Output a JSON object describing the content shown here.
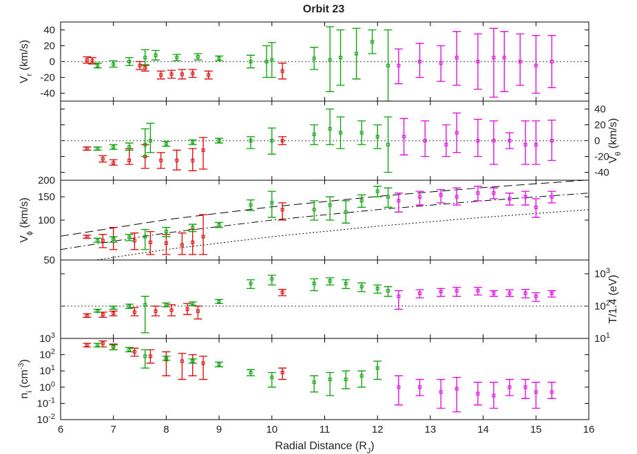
{
  "chart_data": [
    {
      "type": "errorbar",
      "title": "Orbit 23",
      "yaxis": "left",
      "ylabel": [
        {
          "text": "V"
        },
        {
          "text": "r",
          "shift": "sub"
        },
        {
          "text": " (km/s)"
        }
      ],
      "xlim": [
        6,
        16
      ],
      "xticks": [
        6,
        7,
        8,
        9,
        10,
        11,
        12,
        13,
        14,
        15,
        16
      ],
      "ylim": [
        -50,
        50
      ],
      "yticks": [
        -40,
        -20,
        0,
        20,
        40
      ],
      "refline": 0,
      "series": [
        {
          "color": "#dd0000",
          "x": [
            6.5,
            6.6,
            7.5,
            7.6,
            7.9,
            8.1,
            8.3,
            8.5,
            8.8,
            10.2
          ],
          "values": [
            2,
            1,
            -5,
            -8,
            -17,
            -16,
            -16,
            -15,
            -17,
            -12
          ],
          "low": [
            -2,
            -3,
            -10,
            -12,
            -22,
            -21,
            -22,
            -20,
            -22,
            -22
          ],
          "high": [
            6,
            5,
            0,
            -4,
            -12,
            -11,
            -10,
            -10,
            -12,
            -2
          ]
        },
        {
          "color": "#00a000",
          "x": [
            6.7,
            7.0,
            7.3,
            7.6,
            7.8,
            8.2,
            8.6,
            9.0,
            9.6,
            9.9,
            10.0,
            10.8,
            11.1,
            11.3,
            11.6,
            11.9,
            12.2
          ],
          "values": [
            -5,
            -3,
            0,
            5,
            8,
            5,
            6,
            4,
            0,
            0,
            2,
            4,
            2,
            5,
            10,
            25,
            -5
          ],
          "low": [
            -8,
            -7,
            -5,
            -5,
            2,
            1,
            2,
            1,
            -8,
            -20,
            -20,
            -10,
            -38,
            -30,
            -22,
            10,
            -50
          ],
          "high": [
            -2,
            1,
            5,
            15,
            14,
            9,
            10,
            7,
            8,
            20,
            24,
            18,
            44,
            40,
            42,
            40,
            40
          ]
        },
        {
          "color": "#dd00dd",
          "x": [
            12.4,
            12.8,
            13.2,
            13.5,
            13.9,
            14.2,
            14.4,
            14.7,
            15.0,
            15.3
          ],
          "values": [
            -5,
            0,
            -2,
            5,
            0,
            5,
            5,
            0,
            -5,
            0
          ],
          "low": [
            -28,
            -20,
            -25,
            -30,
            -35,
            -45,
            -38,
            -30,
            -40,
            -33
          ],
          "high": [
            16,
            23,
            20,
            38,
            35,
            42,
            38,
            35,
            33,
            33
          ]
        }
      ]
    },
    {
      "type": "errorbar",
      "yaxis": "right",
      "ylabel": [
        {
          "text": "V"
        },
        {
          "text": "θ",
          "shift": "sub"
        },
        {
          "text": " (km/s)"
        }
      ],
      "xlim": [
        6,
        16
      ],
      "xticks": [
        6,
        7,
        8,
        9,
        10,
        11,
        12,
        13,
        14,
        15,
        16
      ],
      "ylim": [
        -50,
        50
      ],
      "yticks": [
        -40,
        -20,
        0,
        20,
        40
      ],
      "refline": 0,
      "series": [
        {
          "color": "#dd0000",
          "x": [
            6.5,
            6.8,
            7.0,
            7.3,
            7.6,
            7.9,
            8.2,
            8.5,
            8.7,
            10.2
          ],
          "values": [
            -10,
            -23,
            -28,
            -25,
            -20,
            -25,
            -25,
            -25,
            -12,
            0
          ],
          "low": [
            -12,
            -27,
            -31,
            -30,
            -35,
            -35,
            -37,
            -38,
            -36,
            -5
          ],
          "high": [
            -8,
            -19,
            -24,
            -10,
            -5,
            -15,
            -12,
            -10,
            4,
            5
          ]
        },
        {
          "color": "#00a000",
          "x": [
            6.7,
            7.0,
            7.3,
            7.6,
            7.7,
            8.0,
            8.5,
            9.0,
            9.6,
            10.0,
            10.8,
            11.1,
            11.3,
            11.7,
            12.0,
            12.2
          ],
          "values": [
            -10,
            -8,
            -8,
            -5,
            0,
            -4,
            -2,
            0,
            0,
            0,
            8,
            15,
            10,
            10,
            5,
            -5
          ],
          "low": [
            -12,
            -11,
            -12,
            -20,
            -15,
            -7,
            -5,
            -3,
            -10,
            -17,
            -5,
            -5,
            -10,
            -5,
            -10,
            -40
          ],
          "high": [
            -8,
            -5,
            -3,
            15,
            22,
            -1,
            1,
            3,
            5,
            16,
            20,
            40,
            30,
            25,
            20,
            30
          ]
        },
        {
          "color": "#dd00dd",
          "x": [
            12.5,
            12.9,
            13.3,
            13.5,
            13.9,
            14.2,
            14.5,
            14.8,
            15.0,
            15.3
          ],
          "values": [
            5,
            0,
            -5,
            10,
            0,
            0,
            0,
            -5,
            -5,
            0
          ],
          "low": [
            -18,
            -20,
            -20,
            -15,
            -20,
            -30,
            -10,
            -30,
            -30,
            -25
          ],
          "high": [
            28,
            25,
            20,
            35,
            27,
            25,
            10,
            25,
            25,
            26
          ]
        }
      ]
    },
    {
      "type": "errorbar",
      "yaxis": "left",
      "ylog": true,
      "ylabel": [
        {
          "text": "V"
        },
        {
          "text": "ϕ",
          "shift": "sub"
        },
        {
          "text": " (km/s)"
        }
      ],
      "xlim": [
        6,
        16
      ],
      "xticks": [
        6,
        7,
        8,
        9,
        10,
        11,
        12,
        13,
        14,
        15,
        16
      ],
      "ylim": [
        50,
        200
      ],
      "yticks": [
        50,
        100,
        150,
        200
      ],
      "series": [
        {
          "type": "line",
          "dash": "dashed",
          "color": "#000000",
          "x": [
            6,
            8,
            10,
            12,
            14,
            16
          ],
          "values": [
            75.6,
            100.8,
            126,
            151,
            176,
            201
          ]
        },
        {
          "type": "line",
          "dash": "dashdot",
          "color": "#000000",
          "x": [
            6,
            8,
            10,
            12,
            14,
            16
          ],
          "values": [
            60,
            80,
            100,
            120,
            140,
            160
          ]
        },
        {
          "type": "line",
          "dash": "dotted",
          "color": "#000000",
          "x": [
            6.7,
            8,
            10,
            12,
            14,
            16
          ],
          "values": [
            50.25,
            60,
            75,
            90,
            105,
            120
          ]
        },
        {
          "color": "#dd0000",
          "x": [
            6.5,
            6.8,
            7.0,
            7.4,
            7.7,
            8.0,
            8.3,
            8.5,
            8.7,
            10.2
          ],
          "values": [
            75,
            70,
            72,
            70,
            68,
            67,
            65,
            68,
            75,
            120
          ],
          "low": [
            73,
            62,
            60,
            60,
            55,
            55,
            55,
            55,
            55,
            100
          ],
          "high": [
            77,
            78,
            88,
            80,
            82,
            78,
            80,
            85,
            110,
            135
          ]
        },
        {
          "color": "#00a000",
          "x": [
            6.7,
            7.0,
            7.3,
            7.6,
            8.0,
            8.5,
            9.0,
            9.6,
            10.0,
            10.8,
            11.1,
            11.4,
            11.7,
            12.0,
            12.2
          ],
          "values": [
            70,
            72,
            74,
            75,
            82,
            88,
            92,
            130,
            135,
            120,
            130,
            115,
            140,
            165,
            150
          ],
          "low": [
            68,
            68,
            70,
            60,
            75,
            82,
            88,
            118,
            105,
            100,
            100,
            95,
            125,
            150,
            125
          ],
          "high": [
            73,
            75,
            78,
            85,
            88,
            93,
            96,
            142,
            165,
            140,
            150,
            140,
            155,
            180,
            175
          ]
        },
        {
          "color": "#dd00dd",
          "x": [
            12.4,
            12.8,
            13.2,
            13.5,
            13.9,
            14.2,
            14.5,
            14.8,
            15.0,
            15.3
          ],
          "values": [
            140,
            150,
            155,
            150,
            160,
            160,
            145,
            150,
            125,
            150
          ],
          "low": [
            115,
            130,
            135,
            130,
            140,
            145,
            130,
            130,
            105,
            135
          ],
          "high": [
            160,
            165,
            170,
            175,
            180,
            175,
            160,
            165,
            145,
            165
          ]
        }
      ]
    },
    {
      "type": "errorbar",
      "yaxis": "right",
      "ylog": true,
      "ylabel": [
        {
          "text": "T/1.4 (eV)"
        }
      ],
      "xlim": [
        6,
        16
      ],
      "xticks": [
        6,
        7,
        8,
        9,
        10,
        11,
        12,
        13,
        14,
        15,
        16
      ],
      "ylim": [
        10,
        2660
      ],
      "yticks": [
        {
          "value": 10,
          "label": "10^1"
        },
        {
          "value": 100,
          "label": "10^2"
        },
        {
          "value": 1000,
          "label": "10^3"
        }
      ],
      "refline": 100,
      "series": [
        {
          "color": "#dd0000",
          "x": [
            6.5,
            6.8,
            7.0,
            7.4,
            7.8,
            8.1,
            8.4,
            8.6,
            10.2
          ],
          "values": [
            50,
            55,
            60,
            65,
            70,
            75,
            80,
            70,
            267
          ],
          "low": [
            45,
            45,
            50,
            50,
            50,
            50,
            55,
            40,
            210
          ],
          "high": [
            58,
            65,
            70,
            90,
            100,
            110,
            120,
            100,
            330
          ]
        },
        {
          "color": "#00a000",
          "x": [
            6.7,
            7.0,
            7.3,
            7.6,
            8.0,
            8.5,
            9.0,
            9.6,
            10.0,
            10.8,
            11.1,
            11.4,
            11.7,
            12.0,
            12.2
          ],
          "values": [
            70,
            90,
            100,
            110,
            110,
            120,
            140,
            500,
            700,
            500,
            600,
            500,
            400,
            350,
            300
          ],
          "low": [
            65,
            80,
            85,
            15,
            95,
            105,
            120,
            350,
            450,
            300,
            450,
            350,
            280,
            250,
            200
          ],
          "high": [
            80,
            100,
            115,
            200,
            125,
            135,
            160,
            650,
            900,
            700,
            750,
            650,
            520,
            450,
            400
          ]
        },
        {
          "color": "#dd00dd",
          "x": [
            12.4,
            12.8,
            13.2,
            13.5,
            13.9,
            14.2,
            14.5,
            14.8,
            15.0,
            15.3
          ],
          "values": [
            200,
            250,
            280,
            300,
            300,
            250,
            250,
            250,
            200,
            250
          ],
          "low": [
            80,
            180,
            200,
            200,
            220,
            200,
            200,
            180,
            140,
            190
          ],
          "high": [
            300,
            320,
            350,
            380,
            380,
            300,
            320,
            330,
            260,
            300
          ]
        }
      ]
    },
    {
      "type": "errorbar",
      "yaxis": "left",
      "ylog": true,
      "ylabel": [
        {
          "text": "n"
        },
        {
          "text": "i",
          "shift": "sub"
        },
        {
          "text": " (cm"
        },
        {
          "text": "-3",
          "shift": "super"
        },
        {
          "text": ")"
        }
      ],
      "xlabel": [
        {
          "text": "Radial Distance (R"
        },
        {
          "text": "J",
          "shift": "sub"
        },
        {
          "text": ")"
        }
      ],
      "xlim": [
        6,
        16
      ],
      "xticks": [
        6,
        7,
        8,
        9,
        10,
        11,
        12,
        13,
        14,
        15,
        16
      ],
      "ylim": [
        0.01,
        1000
      ],
      "yticks": [
        {
          "value": 0.01,
          "label": "10^-2"
        },
        {
          "value": 0.1,
          "label": "10^-1"
        },
        {
          "value": 1,
          "label": "10^0"
        },
        {
          "value": 10,
          "label": "10^1"
        },
        {
          "value": 100,
          "label": "10^2"
        },
        {
          "value": 1000,
          "label": "10^3"
        }
      ],
      "series": [
        {
          "color": "#dd0000",
          "x": [
            6.5,
            6.8,
            7.0,
            7.4,
            7.7,
            8.0,
            8.3,
            8.5,
            8.7,
            10.2
          ],
          "values": [
            400,
            500,
            300,
            150,
            80,
            50,
            40,
            40,
            30,
            8
          ],
          "low": [
            300,
            300,
            200,
            80,
            30,
            5,
            3,
            5,
            3,
            3
          ],
          "high": [
            500,
            700,
            450,
            250,
            200,
            150,
            120,
            100,
            80,
            15
          ]
        },
        {
          "color": "#00a000",
          "x": [
            6.7,
            7.0,
            7.3,
            7.6,
            8.0,
            8.5,
            9.0,
            9.6,
            10.0,
            10.8,
            11.1,
            11.4,
            11.7,
            12.0
          ],
          "values": [
            400,
            300,
            200,
            80,
            60,
            40,
            25,
            8,
            4,
            2,
            3,
            3,
            5,
            15
          ],
          "low": [
            300,
            200,
            150,
            15,
            45,
            30,
            18,
            5,
            1,
            0.5,
            0.3,
            0.8,
            1,
            3
          ],
          "high": [
            500,
            400,
            280,
            200,
            80,
            55,
            35,
            12,
            8,
            5,
            8,
            10,
            10,
            40
          ]
        },
        {
          "color": "#dd00dd",
          "x": [
            12.4,
            12.8,
            13.2,
            13.5,
            13.9,
            14.2,
            14.5,
            14.8,
            15.0,
            15.3
          ],
          "values": [
            1,
            1,
            0.5,
            0.8,
            0.4,
            0.3,
            1,
            1,
            0.5,
            0.5
          ],
          "low": [
            0.08,
            0.3,
            0.05,
            0.03,
            0.08,
            0.05,
            0.3,
            0.2,
            0.05,
            0.2
          ],
          "high": [
            5,
            3,
            3,
            4,
            2,
            2,
            3,
            3,
            2,
            2
          ]
        }
      ]
    }
  ]
}
